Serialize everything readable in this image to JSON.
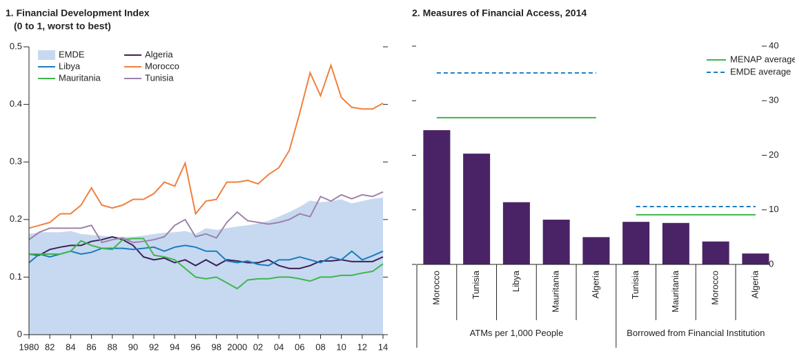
{
  "chart_data": [
    {
      "type": "line",
      "title": "1. Financial Development Index",
      "subtitle": "(0 to 1, worst to best)",
      "x": [
        1980,
        1981,
        1982,
        1983,
        1984,
        1985,
        1986,
        1987,
        1988,
        1989,
        1990,
        1991,
        1992,
        1993,
        1994,
        1995,
        1996,
        1997,
        1998,
        1999,
        2000,
        2001,
        2002,
        2003,
        2004,
        2005,
        2006,
        2007,
        2008,
        2009,
        2010,
        2011,
        2012,
        2013,
        2014
      ],
      "xlim": [
        1980,
        2014
      ],
      "xticks": [
        1980,
        {
          "value": 1982,
          "label": "82"
        },
        {
          "value": 1984,
          "label": "84"
        },
        {
          "value": 1986,
          "label": "86"
        },
        {
          "value": 1988,
          "label": "88"
        },
        {
          "value": 1990,
          "label": "90"
        },
        {
          "value": 1992,
          "label": "92"
        },
        {
          "value": 1994,
          "label": "94"
        },
        {
          "value": 1996,
          "label": "96"
        },
        {
          "value": 1998,
          "label": "98"
        },
        2000,
        {
          "value": 2002,
          "label": "02"
        },
        {
          "value": 2004,
          "label": "04"
        },
        {
          "value": 2006,
          "label": "06"
        },
        {
          "value": 2008,
          "label": "08"
        },
        {
          "value": 2010,
          "label": "10"
        },
        {
          "value": 2012,
          "label": "12"
        },
        {
          "value": 2014,
          "label": "14"
        }
      ],
      "ylim": [
        0,
        0.5
      ],
      "yticks": [
        0,
        0.1,
        0.2,
        0.3,
        0.4,
        0.5
      ],
      "series": [
        {
          "name": "EMDE",
          "color": "#c6d9f0",
          "style": "area",
          "values": [
            0.175,
            0.178,
            0.178,
            0.178,
            0.18,
            0.175,
            0.173,
            0.172,
            0.17,
            0.17,
            0.17,
            0.172,
            0.175,
            0.177,
            0.178,
            0.18,
            0.175,
            0.185,
            0.182,
            0.185,
            0.188,
            0.19,
            0.193,
            0.198,
            0.205,
            0.213,
            0.222,
            0.233,
            0.23,
            0.232,
            0.235,
            0.228,
            0.232,
            0.236,
            0.238
          ]
        },
        {
          "name": "Algeria",
          "color": "#3b1f5a",
          "style": "line",
          "values": [
            0.14,
            0.138,
            0.148,
            0.152,
            0.155,
            0.155,
            0.162,
            0.165,
            0.17,
            0.165,
            0.155,
            0.135,
            0.13,
            0.133,
            0.125,
            0.13,
            0.12,
            0.13,
            0.12,
            0.13,
            0.128,
            0.125,
            0.125,
            0.13,
            0.12,
            0.115,
            0.115,
            0.12,
            0.128,
            0.128,
            0.13,
            0.127,
            0.127,
            0.127,
            0.135
          ]
        },
        {
          "name": "Libya",
          "color": "#1a7bbf",
          "style": "line",
          "values": [
            0.125,
            0.14,
            0.135,
            0.14,
            0.145,
            0.14,
            0.143,
            0.15,
            0.15,
            0.15,
            0.148,
            0.15,
            0.152,
            0.145,
            0.152,
            0.155,
            0.152,
            0.145,
            0.145,
            0.128,
            0.125,
            0.128,
            0.122,
            0.12,
            0.13,
            0.13,
            0.135,
            0.13,
            0.125,
            0.135,
            0.13,
            0.145,
            0.13,
            0.137,
            0.145
          ]
        },
        {
          "name": "Morocco",
          "color": "#f07f3c",
          "style": "line",
          "values": [
            0.185,
            0.19,
            0.195,
            0.21,
            0.21,
            0.225,
            0.255,
            0.225,
            0.22,
            0.225,
            0.235,
            0.235,
            0.245,
            0.265,
            0.258,
            0.298,
            0.21,
            0.232,
            0.235,
            0.265,
            0.265,
            0.268,
            0.262,
            0.278,
            0.29,
            0.32,
            0.385,
            0.455,
            0.415,
            0.468,
            0.412,
            0.395,
            0.392,
            0.392,
            0.402
          ]
        },
        {
          "name": "Mauritania",
          "color": "#3db54a",
          "style": "line",
          "values": [
            0.14,
            0.14,
            0.14,
            0.14,
            0.145,
            0.163,
            0.155,
            0.15,
            0.148,
            0.165,
            0.167,
            0.167,
            0.138,
            0.135,
            0.13,
            0.115,
            0.1,
            0.097,
            0.1,
            0.09,
            0.08,
            0.095,
            0.097,
            0.097,
            0.1,
            0.1,
            0.097,
            0.093,
            0.1,
            0.1,
            0.103,
            0.103,
            0.107,
            0.11,
            0.123
          ]
        },
        {
          "name": "Tunisia",
          "color": "#9b82a8",
          "style": "line",
          "values": [
            0.165,
            0.178,
            0.185,
            0.185,
            0.185,
            0.185,
            0.19,
            0.16,
            0.165,
            0.168,
            0.16,
            0.162,
            0.165,
            0.17,
            0.19,
            0.2,
            0.17,
            0.175,
            0.168,
            0.195,
            0.213,
            0.198,
            0.195,
            0.192,
            0.195,
            0.2,
            0.21,
            0.205,
            0.24,
            0.232,
            0.243,
            0.236,
            0.243,
            0.24,
            0.248
          ]
        }
      ]
    },
    {
      "type": "grouped-bar",
      "title": "2. Measures of Financial Access, 2014",
      "color": "#4a2366",
      "ylim": [
        0,
        40
      ],
      "yticks": [
        0,
        10,
        20,
        30,
        40
      ],
      "groups": [
        {
          "name": "ATMs per 1,000 People",
          "categories": [
            "Morocco",
            "Tunisia",
            "Libya",
            "Mauritania",
            "Algeria"
          ],
          "values": [
            24.6,
            20.3,
            11.4,
            8.2,
            5.0
          ]
        },
        {
          "name": "Borrowed from Financial Institution",
          "categories": [
            "Tunisia",
            "Mauritania",
            "Morocco",
            "Algeria"
          ],
          "values": [
            7.8,
            7.6,
            4.2,
            2.0
          ]
        }
      ],
      "reference_lines": [
        {
          "name": "MENAP average",
          "color": "#3db54a",
          "line_style": "solid",
          "values": [
            26.9,
            9.1
          ]
        },
        {
          "name": "EMDE average",
          "color": "#1a7bbf",
          "line_style": "dashed",
          "values": [
            35.1,
            10.6
          ]
        }
      ]
    }
  ]
}
